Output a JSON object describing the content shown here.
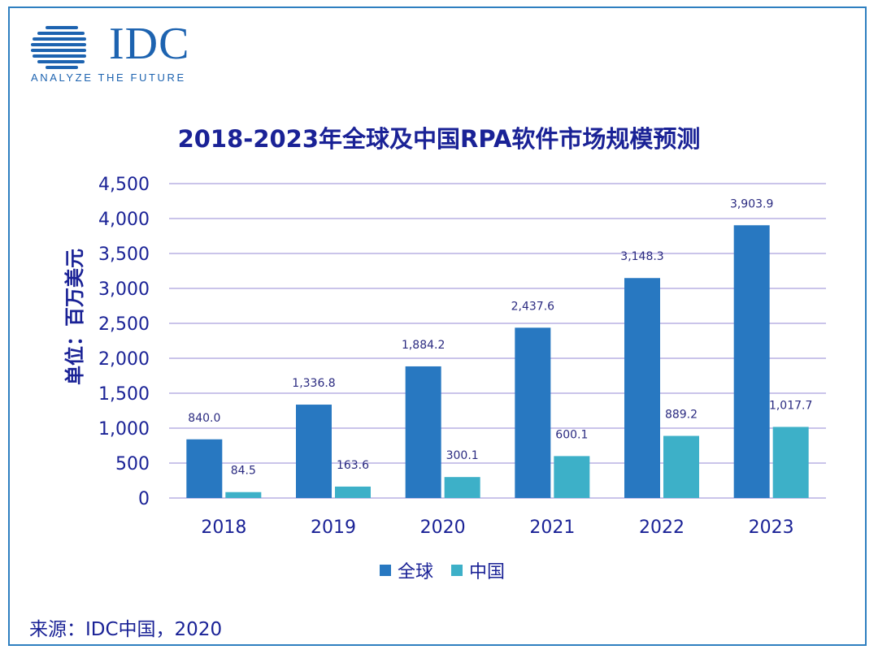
{
  "logo": {
    "text": "IDC",
    "tagline": "ANALYZE THE FUTURE"
  },
  "colors": {
    "global": "#2878c1",
    "china": "#3db0c8",
    "axis_text": "#1a2296",
    "grid": "#b8b0e4",
    "border": "#2e7fc0"
  },
  "chart_data": {
    "type": "bar",
    "title": "2018-2023年全球及中国RPA软件市场规模预测",
    "ylabel": "单位：百万美元",
    "xlabel": "",
    "categories": [
      "2018",
      "2019",
      "2020",
      "2021",
      "2022",
      "2023"
    ],
    "ylim": [
      0,
      4500
    ],
    "yticks": [
      0,
      500,
      1000,
      1500,
      2000,
      2500,
      3000,
      3500,
      4000,
      4500
    ],
    "ytick_labels": [
      "0",
      "500",
      "1,000",
      "1,500",
      "2,000",
      "2,500",
      "3,000",
      "3,500",
      "4,000",
      "4,500"
    ],
    "grid": true,
    "legend_position": "bottom-center",
    "series": [
      {
        "name": "全球",
        "values": [
          840.0,
          1336.8,
          1884.2,
          2437.6,
          3148.3,
          3903.9
        ],
        "labels": [
          "840.0",
          "1,336.8",
          "1,884.2",
          "2,437.6",
          "3,148.3",
          "3,903.9"
        ]
      },
      {
        "name": "中国",
        "values": [
          84.5,
          163.6,
          300.1,
          600.1,
          889.2,
          1017.7
        ],
        "labels": [
          "84.5",
          "163.6",
          "300.1",
          "600.1",
          "889.2",
          "1,017.7"
        ]
      }
    ]
  },
  "source": "来源：IDC中国，2020"
}
